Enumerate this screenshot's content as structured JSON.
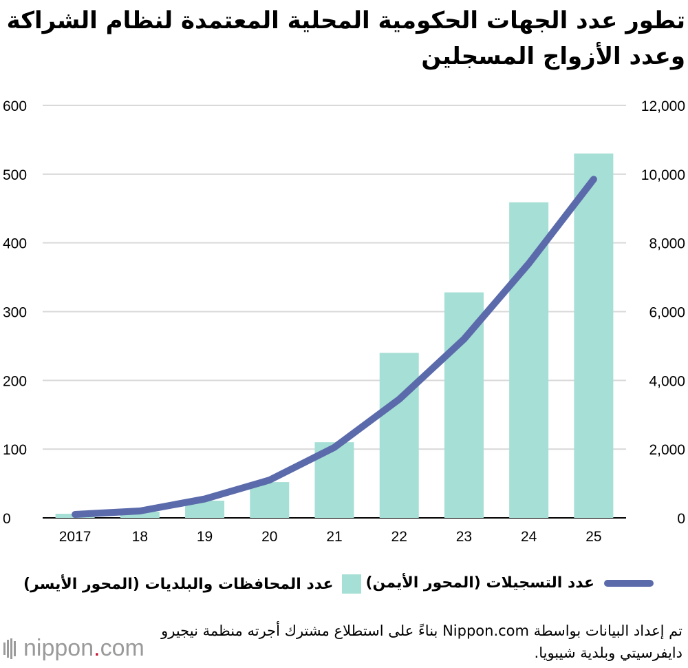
{
  "title": "تطور عدد الجهات الحكومية المحلية المعتمدة لنظام الشراكة وعدد الأزواج المسجلين",
  "legend": {
    "line_label": "عدد التسجيلات (المحور الأيمن)",
    "bar_label": "عدد المحافظات والبلديات (المحور الأيسر)"
  },
  "source": "تم إعداد البيانات بواسطة Nippon.com بناءً على استطلاع مشترك أجرته منظمة نيجيرو دايفرسيتي وبلدية شيبويا.",
  "logo": {
    "text_main": "nippon",
    "text_dot": ".",
    "text_tail": "com"
  },
  "colors": {
    "bars": "#a6dfd5",
    "line": "#5a6aab",
    "grid": "#d9d9d9",
    "logo_dot": "#c8102e"
  },
  "chart_data": {
    "type": "bar+line",
    "title": "تطور عدد الجهات الحكومية المحلية المعتمدة لنظام الشراكة وعدد الأزواج المسجلين",
    "categories": [
      "2017",
      "18",
      "19",
      "20",
      "21",
      "22",
      "23",
      "24",
      "25"
    ],
    "series": [
      {
        "name": "عدد المحافظات والبلديات (المحور الأيسر)",
        "type": "bar",
        "axis": "left",
        "values": [
          6,
          9,
          25,
          52,
          110,
          240,
          328,
          459,
          530
        ]
      },
      {
        "name": "عدد التسجيلات (المحور الأيمن)",
        "type": "line",
        "axis": "right",
        "values": [
          100,
          200,
          550,
          1100,
          2050,
          3450,
          5200,
          7400,
          9850
        ]
      }
    ],
    "left_axis": {
      "ylim": [
        0,
        600
      ],
      "ticks": [
        0,
        100,
        200,
        300,
        400,
        500,
        600
      ],
      "tick_labels": [
        "0",
        "100",
        "200",
        "300",
        "400",
        "500",
        "600"
      ]
    },
    "right_axis": {
      "ylim": [
        0,
        12000
      ],
      "ticks": [
        0,
        2000,
        4000,
        6000,
        8000,
        10000,
        12000
      ],
      "tick_labels": [
        "0",
        "2,000",
        "4,000",
        "6,000",
        "8,000",
        "10,000",
        "12,000"
      ]
    },
    "grid": true
  }
}
